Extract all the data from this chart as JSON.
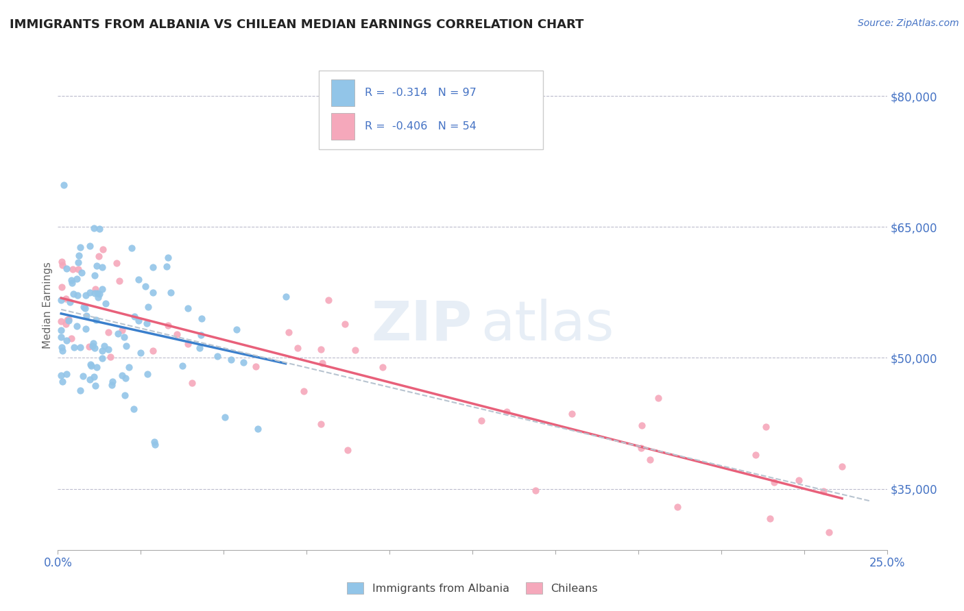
{
  "title": "IMMIGRANTS FROM ALBANIA VS CHILEAN MEDIAN EARNINGS CORRELATION CHART",
  "source": "Source: ZipAtlas.com",
  "ylabel": "Median Earnings",
  "xlim": [
    0.0,
    0.25
  ],
  "ylim": [
    28000,
    84000
  ],
  "ytick_positions": [
    35000,
    50000,
    65000,
    80000
  ],
  "ytick_labels": [
    "$35,000",
    "$50,000",
    "$65,000",
    "$80,000"
  ],
  "albania_color": "#92C5E8",
  "chilean_color": "#F5A8BB",
  "albania_line_color": "#3A7FCC",
  "chilean_line_color": "#E8607A",
  "dashed_line_color": "#B8C4D0",
  "R_albania": -0.314,
  "N_albania": 97,
  "R_chilean": -0.406,
  "N_chilean": 54,
  "legend_label_1": "Immigrants from Albania",
  "legend_label_2": "Chileans",
  "title_color": "#222222",
  "axis_label_color": "#4472C4",
  "ylabel_color": "#666666",
  "watermark_color": "#D8E4F0"
}
